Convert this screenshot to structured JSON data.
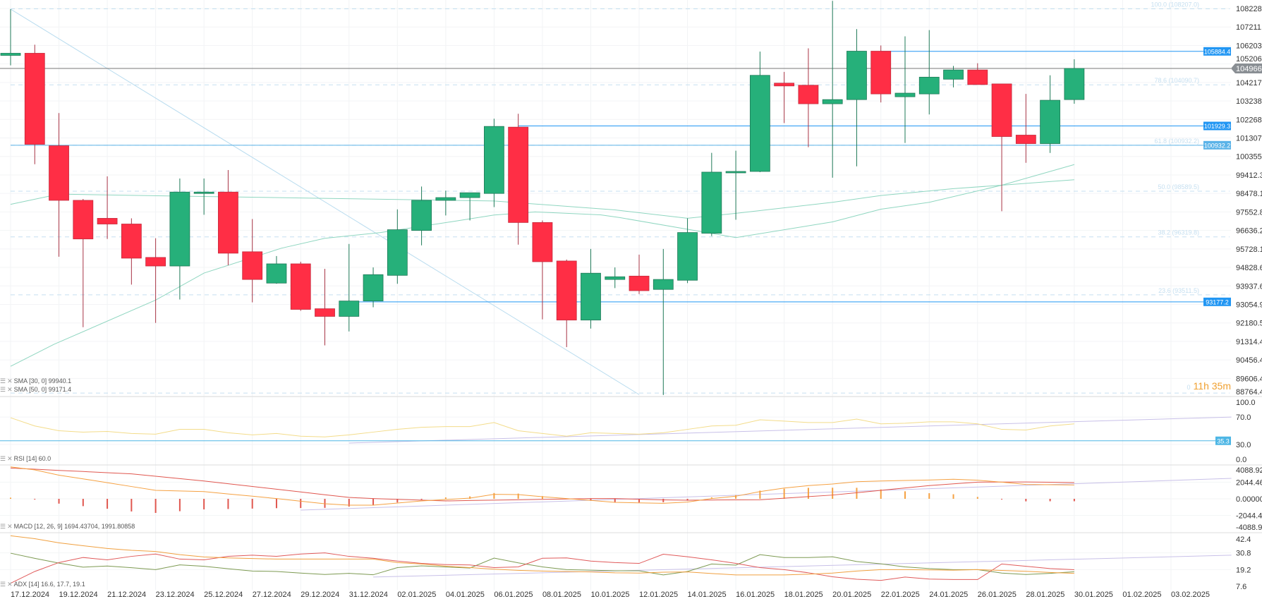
{
  "chart_data": {
    "type": "candlestick",
    "candles_ohlc": [
      [
        105667,
        108190,
        105130,
        105782
      ],
      [
        105782,
        106243,
        99956,
        100978
      ],
      [
        100904,
        102604,
        95348,
        98132
      ],
      [
        98132,
        98200,
        91981,
        96217
      ],
      [
        97235,
        99340,
        96217,
        96953
      ],
      [
        96953,
        97235,
        94000,
        95278
      ],
      [
        95313,
        96252,
        92181,
        94898
      ],
      [
        94898,
        99232,
        93291,
        98547
      ],
      [
        98478,
        99232,
        97412,
        98547
      ],
      [
        98547,
        99663,
        94933,
        95520
      ],
      [
        95590,
        97199,
        93153,
        94248
      ],
      [
        94073,
        95381,
        94040,
        95002
      ],
      [
        95002,
        95105,
        92750,
        92820
      ],
      [
        92850,
        94759,
        91130,
        92488
      ],
      [
        92488,
        95972,
        91781,
        93218
      ],
      [
        93218,
        94829,
        92920,
        94480
      ],
      [
        94446,
        97680,
        94040,
        96671
      ],
      [
        96636,
        98826,
        95903,
        98132
      ],
      [
        98132,
        98616,
        97378,
        98270
      ],
      [
        98270,
        98513,
        97130,
        98513
      ],
      [
        98478,
        102306,
        97795,
        101905
      ],
      [
        101868,
        102567,
        95937,
        97028
      ],
      [
        97028,
        97130,
        92349,
        95105
      ],
      [
        95140,
        95210,
        91050,
        92315
      ],
      [
        92315,
        95728,
        91915,
        94550
      ],
      [
        94248,
        94829,
        93833,
        94378
      ],
      [
        94410,
        95450,
        93550,
        93710
      ],
      [
        93770,
        95728,
        88850,
        94248
      ],
      [
        94210,
        97235,
        94073,
        96532
      ],
      [
        96497,
        100540,
        96357,
        99555
      ],
      [
        99520,
        100650,
        97165,
        99590
      ],
      [
        99590,
        105870,
        99555,
        104597
      ],
      [
        104180,
        104780,
        102080,
        104032
      ],
      [
        104070,
        106050,
        100830,
        103090
      ],
      [
        103090,
        108650,
        99270,
        103310
      ],
      [
        103310,
        107095,
        99850,
        105895
      ],
      [
        105895,
        106204,
        103160,
        103610
      ],
      [
        103460,
        106700,
        101050,
        103650
      ],
      [
        103610,
        107040,
        102530,
        104500
      ],
      [
        104390,
        105100,
        103955,
        104885
      ],
      [
        104885,
        105244,
        104105,
        104105
      ],
      [
        104140,
        104140,
        97587,
        101380
      ],
      [
        101454,
        103610,
        100030,
        101015
      ],
      [
        101015,
        104600,
        100535,
        103275
      ],
      [
        103310,
        105460,
        103090,
        104966
      ]
    ],
    "date_axis_labels": [
      "17.12.2024",
      "19.12.2024",
      "21.12.2024",
      "23.12.2024",
      "25.12.2024",
      "27.12.2024",
      "29.12.2024",
      "31.12.2024",
      "02.01.2025",
      "04.01.2025",
      "06.01.2025",
      "08.01.2025",
      "10.01.2025",
      "12.01.2025",
      "14.01.2025",
      "16.01.2025",
      "18.01.2025",
      "20.01.2025",
      "22.01.2025",
      "24.01.2025",
      "26.01.2025",
      "28.01.2025",
      "30.01.2025",
      "01.02.2025",
      "03.02.2025"
    ],
    "price_axis_ticks": [
      "108228.3",
      "107211.3",
      "106203.7",
      "105206.0",
      "104217.4",
      "103238.2",
      "102268.1",
      "101307.2",
      "100355.2",
      "99412.3",
      "98478.1",
      "97552.8",
      "96636.2",
      "95728.1",
      "94828.6",
      "93937.6",
      "93054.9",
      "92180.5",
      "91314.4",
      "90456.4",
      "89606.4",
      "88764.4"
    ],
    "current_price": {
      "value": 104966.0,
      "label": "104966.0",
      "color": "#8a8f94"
    },
    "horizontal_lines": [
      {
        "value": 105884.4,
        "label": "105884.4",
        "start_index": 36,
        "color": "#2196f3"
      },
      {
        "value": 101929.3,
        "label": "101929.3",
        "start_index": 21,
        "color": "#2196f3"
      },
      {
        "value": 100932.2,
        "label": "100932.2",
        "start_index": 0,
        "color": "#5bb3e8"
      },
      {
        "value": 93177.2,
        "label": "93177.2",
        "start_index": 14,
        "color": "#2196f3"
      }
    ],
    "fibonacci": [
      {
        "price": 108207.0,
        "label": "100.0 (108207.0)"
      },
      {
        "price": 104090.7,
        "label": "78.6 (104090.7)"
      },
      {
        "price": 100932.2,
        "label": "61.8 (100932.2)"
      },
      {
        "price": 98589.5,
        "label": "50.0 (98589.5)"
      },
      {
        "price": 96319.8,
        "label": "38.2 (96319.8)"
      },
      {
        "price": 93511.5,
        "label": "23.6 (93511.5)"
      },
      {
        "price": 88940,
        "label": "0.0"
      }
    ],
    "trendline": {
      "from": [
        0,
        108190
      ],
      "to": [
        26,
        88870
      ]
    },
    "sma30": {
      "label": "SMA [30, 0] 99940.1",
      "points": [
        [
          0,
          90162
        ],
        [
          1.8,
          91181
        ],
        [
          6,
          93260
        ],
        [
          8,
          94555
        ],
        [
          11.2,
          95763
        ],
        [
          13,
          96250
        ],
        [
          15.3,
          96530
        ],
        [
          18.2,
          97060
        ],
        [
          20,
          97400
        ],
        [
          21.7,
          97553
        ],
        [
          24.4,
          97410
        ],
        [
          25.2,
          97272
        ],
        [
          30,
          96286
        ],
        [
          34,
          97060
        ],
        [
          36,
          97690
        ],
        [
          38,
          98032
        ],
        [
          41,
          98893
        ],
        [
          44,
          99940
        ]
      ]
    },
    "sma50": {
      "label": "SMA [50, 0] 99171.4",
      "points": [
        [
          0,
          97930
        ],
        [
          2,
          98444
        ],
        [
          7,
          98341
        ],
        [
          12.7,
          98238
        ],
        [
          20,
          98100
        ],
        [
          25,
          97655
        ],
        [
          28,
          97236
        ],
        [
          30,
          97483
        ],
        [
          34,
          98032
        ],
        [
          36,
          98374
        ],
        [
          39,
          98720
        ],
        [
          41,
          98893
        ],
        [
          44,
          99171
        ]
      ]
    },
    "rsi": {
      "label": "RSI [14] 60.0",
      "axis_ticks": [
        "100.0",
        "70.0",
        "30.0",
        "0.0"
      ],
      "values": [
        69,
        57,
        50,
        48,
        49,
        46,
        45,
        52,
        52,
        47,
        44,
        46,
        42,
        41,
        44,
        48,
        52,
        55,
        56,
        56,
        62,
        50,
        46,
        42,
        47,
        46,
        45,
        47,
        52,
        57,
        58,
        66,
        64,
        62,
        62,
        67,
        60,
        61,
        63,
        63,
        60,
        52,
        51,
        57,
        60
      ],
      "level": {
        "value": 35.3,
        "label": "35.3"
      },
      "trend": {
        "from": [
          14,
          32
        ],
        "to": [
          50.5,
          70
        ]
      }
    },
    "macd": {
      "label": "MACD [12, 26, 9] 1694.43704,  1991.80858",
      "axis_ticks": [
        "4088.920",
        "2044.460",
        "0.00000",
        "-2044.46",
        "-4088.92"
      ],
      "macd": [
        3920,
        3550,
        2900,
        2450,
        1980,
        1510,
        1040,
        960,
        890,
        600,
        320,
        30,
        -290,
        -610,
        -780,
        -780,
        -520,
        -260,
        -90,
        90,
        550,
        520,
        260,
        30,
        -200,
        -430,
        -500,
        -550,
        -400,
        30,
        320,
        890,
        1320,
        1620,
        1820,
        2100,
        2190,
        2250,
        2310,
        2400,
        2280,
        2050,
        1760,
        1730,
        1694
      ],
      "signal": [
        3780,
        3640,
        3490,
        3350,
        3200,
        3060,
        2770,
        2480,
        2190,
        1850,
        1520,
        1180,
        840,
        500,
        170,
        30,
        -70,
        -160,
        -260,
        -210,
        -160,
        -120,
        -70,
        -20,
        30,
        30,
        -50,
        -130,
        -170,
        -150,
        -130,
        -115,
        80,
        270,
        460,
        750,
        1040,
        1330,
        1620,
        1840,
        2050,
        2060,
        2070,
        2030,
        1992
      ],
      "trend": {
        "from": [
          12,
          -1390
        ],
        "to": [
          50.5,
          2510
        ]
      }
    },
    "adx": {
      "label": "ADX [14] 16.6, 17.7, 19.1",
      "axis_ticks": [
        "42.4",
        "30.8",
        "19.2",
        "7.6"
      ],
      "adx": [
        42.7,
        40.7,
        37.8,
        35.8,
        33.9,
        32.6,
        31.8,
        29.6,
        28,
        27.3,
        26.9,
        26.5,
        26.5,
        26.5,
        26.5,
        26.5,
        24.1,
        23.1,
        21.6,
        20.6,
        19.5,
        18.7,
        18.2,
        17.9,
        17.6,
        17,
        16.8,
        17.4,
        17.6,
        16.5,
        15.5,
        15.5,
        15.5,
        16,
        16.8,
        18.2,
        19.2,
        19.2,
        19,
        18.8,
        19.2,
        18.6,
        18,
        17.2,
        16.6
      ],
      "plus_di": [
        30.6,
        27,
        23.7,
        20.9,
        21.7,
        20.5,
        19.2,
        22.5,
        21.5,
        19.8,
        18.2,
        17.9,
        16.8,
        15.8,
        16.6,
        15.6,
        20.6,
        21.8,
        21,
        20.3,
        27.2,
        23.9,
        21.1,
        19.2,
        18.8,
        18.4,
        18.4,
        15.5,
        17.9,
        23.1,
        22.3,
        29.6,
        27.6,
        27.6,
        28.1,
        24.8,
        23.2,
        21.1,
        19.9,
        19.2,
        19.2,
        16.8,
        15.8,
        16.6,
        17.7
      ],
      "minus_di": [
        9.7,
        17.9,
        24.1,
        27.6,
        26,
        28.4,
        30,
        26.5,
        26,
        28.4,
        29.2,
        28.4,
        30,
        30.8,
        28.4,
        27.1,
        25.1,
        23.5,
        22.7,
        22.4,
        20.6,
        21.1,
        27.1,
        27.3,
        25.1,
        24.1,
        23.5,
        29.9,
        28.1,
        26,
        23.5,
        20.6,
        19.2,
        17,
        14.2,
        12.5,
        11.7,
        14,
        12.6,
        12.3,
        12.3,
        23.1,
        21.5,
        19.9,
        19.1
      ],
      "trend": {
        "from": [
          15,
          14
        ],
        "to": [
          50.5,
          29.2
        ]
      }
    },
    "colors": {
      "up": "#26b07a",
      "down": "#ff2e45",
      "up_wick": "#1f7a58",
      "down_wick": "#a83445",
      "sma": "#8fd6c0",
      "rsi": "#f3dc8a",
      "macd": "#f5a142",
      "signal": "#e0574f",
      "adx": "#f0a040",
      "plus_di": "#7d9a52",
      "minus_di": "#e05a5a",
      "trend": "#c8c0e8",
      "fib": "#c5dff0",
      "diag": "#b9dcef"
    }
  },
  "countdown": {
    "prefix": "0",
    "text": "11h 35m"
  },
  "legend_icons": [
    "menu-icon",
    "close-icon"
  ]
}
